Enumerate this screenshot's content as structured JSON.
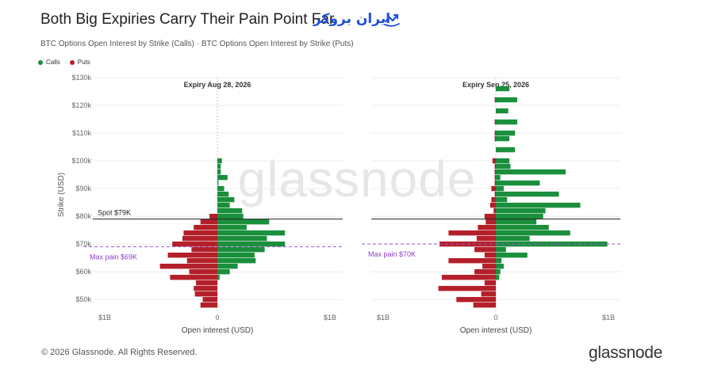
{
  "page": {
    "title": "Both Big Expiries Carry Their Pain Point Far",
    "subtitle": "BTC Options Open Interest by Strike (Calls) · BTC Options Open Interest by Strike (Puts)",
    "brand_logo_text": "ایران بروکر",
    "footer": "© 2026 Glassnode. All Rights Reserved.",
    "footer_logo": "glassnode",
    "watermark": "glassnode",
    "legend": [
      {
        "label": "Calls",
        "color": "#1a8f3c"
      },
      {
        "label": "Puts",
        "color": "#b3202a"
      }
    ]
  },
  "chart_data": {
    "type": "bar",
    "orientation": "horizontal-diverging",
    "ylabel": "Strike (USD)",
    "xlabel": "Open interest (USD)",
    "y_ticks": [
      "$50k",
      "$60k",
      "$70k",
      "$80k",
      "$90k",
      "$100k",
      "$110k",
      "$120k",
      "$130k"
    ],
    "y_tick_values": [
      50,
      60,
      70,
      80,
      90,
      100,
      110,
      120,
      130
    ],
    "ylim": [
      45.5,
      130
    ],
    "x_tick_labels": [
      "$1B",
      "0",
      "$1B"
    ],
    "xlim": [
      -1.0,
      1.0
    ],
    "colors": {
      "calls": "#1a8f3c",
      "puts": "#b3202a"
    },
    "spot": {
      "value": 79,
      "label": "Spot $79K"
    },
    "panels": [
      {
        "title": "Expiry Aug 28, 2026",
        "max_pain": {
          "value": 69,
          "label": "Max pain $69K"
        },
        "strikes": [
          48,
          50,
          52,
          54,
          56,
          58,
          60,
          62,
          64,
          66,
          68,
          70,
          72,
          74,
          76,
          78,
          80,
          82,
          84,
          86,
          88,
          90,
          92,
          94,
          96,
          98,
          100,
          104,
          108
        ],
        "calls": [
          0,
          0,
          0,
          0,
          0,
          0.02,
          0.11,
          0.18,
          0.34,
          0.33,
          0.42,
          0.6,
          0.44,
          0.6,
          0.26,
          0.46,
          0.23,
          0.22,
          0.11,
          0.15,
          0.1,
          0.06,
          0.01,
          0.09,
          0.03,
          0.03,
          0.04,
          0,
          0
        ],
        "puts": [
          0.15,
          0.13,
          0.2,
          0.21,
          0.19,
          0.42,
          0.25,
          0.51,
          0.27,
          0.44,
          0.23,
          0.4,
          0.31,
          0.3,
          0.21,
          0.15,
          0.07,
          0,
          0,
          0,
          0,
          0,
          0,
          0,
          0,
          0,
          0,
          0,
          0
        ]
      },
      {
        "title": "Expiry Sep 25, 2026",
        "max_pain": {
          "value": 70,
          "label": "Max pain $70K"
        },
        "strikes": [
          48,
          50,
          52,
          54,
          56,
          58,
          60,
          62,
          64,
          66,
          68,
          70,
          72,
          74,
          76,
          78,
          80,
          82,
          84,
          86,
          88,
          90,
          92,
          94,
          96,
          98,
          100,
          104,
          108,
          110,
          114,
          118,
          122,
          126,
          130
        ],
        "calls": [
          0,
          0,
          0,
          0,
          0,
          0.03,
          0.04,
          0.07,
          0.05,
          0.28,
          0.09,
          0.99,
          0.3,
          0.66,
          0.47,
          0.36,
          0.42,
          0.44,
          0.75,
          0.1,
          0.56,
          0.07,
          0.39,
          0.04,
          0.62,
          0.13,
          0.12,
          0.17,
          0.12,
          0.17,
          0.19,
          0.11,
          0.19,
          0.12,
          0
        ],
        "puts": [
          0.2,
          0.35,
          0.13,
          0.51,
          0.1,
          0.48,
          0.19,
          0.12,
          0.42,
          0.1,
          0.19,
          0.5,
          0.17,
          0.42,
          0.16,
          0.09,
          0.1,
          0.02,
          0.05,
          0.04,
          0.01,
          0.04,
          0.01,
          0.01,
          0.01,
          0.01,
          0.03,
          0,
          0.01,
          0.01,
          0.01,
          0,
          0.01,
          0,
          0
        ]
      }
    ]
  }
}
